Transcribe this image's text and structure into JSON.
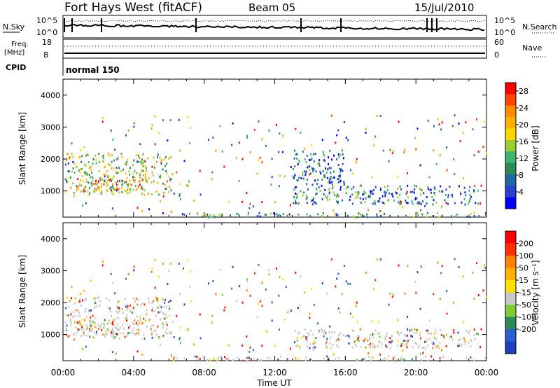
{
  "header": {
    "title": "Fort Hays West (fitACF)",
    "beam": "Beam 05",
    "date": "15/Jul/2010"
  },
  "noise_panel": {
    "left_label": "N.Sky",
    "right_label": "N.Search",
    "left_top": "10^5",
    "left_bottom": "10^0",
    "right_top": "10^5",
    "right_bottom": "10^0"
  },
  "freq_panel": {
    "left_label_1": "Freq.",
    "left_label_2": "[MHz]",
    "left_top": "18",
    "left_bottom": "8",
    "right_label": "Nave",
    "right_top": "60",
    "right_bottom": "0"
  },
  "cpid": {
    "label": "CPID",
    "value": "normal 150"
  },
  "colors": {
    "power": [
      "#0000ff",
      "#2a3fd0",
      "#1e6aa0",
      "#2e8b57",
      "#3cb371",
      "#9acd32",
      "#ffd700",
      "#ffb000",
      "#ff8c00",
      "#ff4500",
      "#ff0000"
    ],
    "velocity": [
      "#1f3fbf",
      "#2a5fcf",
      "#2e8b57",
      "#7ccd32",
      "#c8c8c8",
      "#ffe000",
      "#ffb000",
      "#ff7f00",
      "#ff3000",
      "#ff0000"
    ]
  },
  "chart_data": [
    {
      "type": "heatmap",
      "name": "power",
      "ylabel": "Slant Range [km]",
      "xlabel": "",
      "x_ticks": [
        "00:00",
        "04:00",
        "08:00",
        "12:00",
        "16:00",
        "20:00",
        "00:00"
      ],
      "y_ticks": [
        "1000",
        "2000",
        "3000",
        "4000"
      ],
      "ylim": [
        180,
        4500
      ],
      "xlim_hours": [
        0,
        24
      ],
      "colorbar_label": "Power [dB]",
      "colorbar_ticks": [
        "4",
        "8",
        "12",
        "16",
        "20",
        "24",
        "28"
      ],
      "clim": [
        0,
        30
      ],
      "regions": [
        {
          "t0": 0.1,
          "t1": 6.2,
          "r0": 900,
          "r1": 2200,
          "level": 0.5
        },
        {
          "t0": 0.8,
          "t1": 4.5,
          "r0": 1000,
          "r1": 1400,
          "level": 0.75
        },
        {
          "t0": 13.0,
          "t1": 23.5,
          "r0": 600,
          "r1": 1200,
          "level": 0.25
        },
        {
          "t0": 13.0,
          "t1": 16.0,
          "r0": 1200,
          "r1": 2300,
          "level": 0.2
        },
        {
          "t0": 6.0,
          "t1": 24.0,
          "r0": 200,
          "r1": 350,
          "level": 0.3
        }
      ]
    },
    {
      "type": "heatmap",
      "name": "velocity",
      "ylabel": "Slant Range [km]",
      "xlabel": "Time UT",
      "x_ticks": [
        "00:00",
        "04:00",
        "08:00",
        "12:00",
        "16:00",
        "20:00",
        "00:00"
      ],
      "y_ticks": [
        "1000",
        "2000",
        "3000",
        "4000"
      ],
      "ylim": [
        180,
        4500
      ],
      "xlim_hours": [
        0,
        24
      ],
      "colorbar_label": "Velocity [m s⁻¹]",
      "colorbar_ticks": [
        "200",
        "100",
        "50",
        "15",
        "-15",
        "-50",
        "-100",
        "-200"
      ],
      "clim": [
        -250,
        250
      ],
      "regions": [
        {
          "t0": 0.1,
          "t1": 6.2,
          "r0": 900,
          "r1": 2200,
          "level": 0.5
        },
        {
          "t0": 0.8,
          "t1": 4.5,
          "r0": 1000,
          "r1": 1400,
          "level": 0.5
        },
        {
          "t0": 13.0,
          "t1": 23.5,
          "r0": 600,
          "r1": 1200,
          "level": 0.5
        },
        {
          "t0": 6.0,
          "t1": 24.0,
          "r0": 200,
          "r1": 350,
          "level": 0.6
        }
      ]
    }
  ]
}
